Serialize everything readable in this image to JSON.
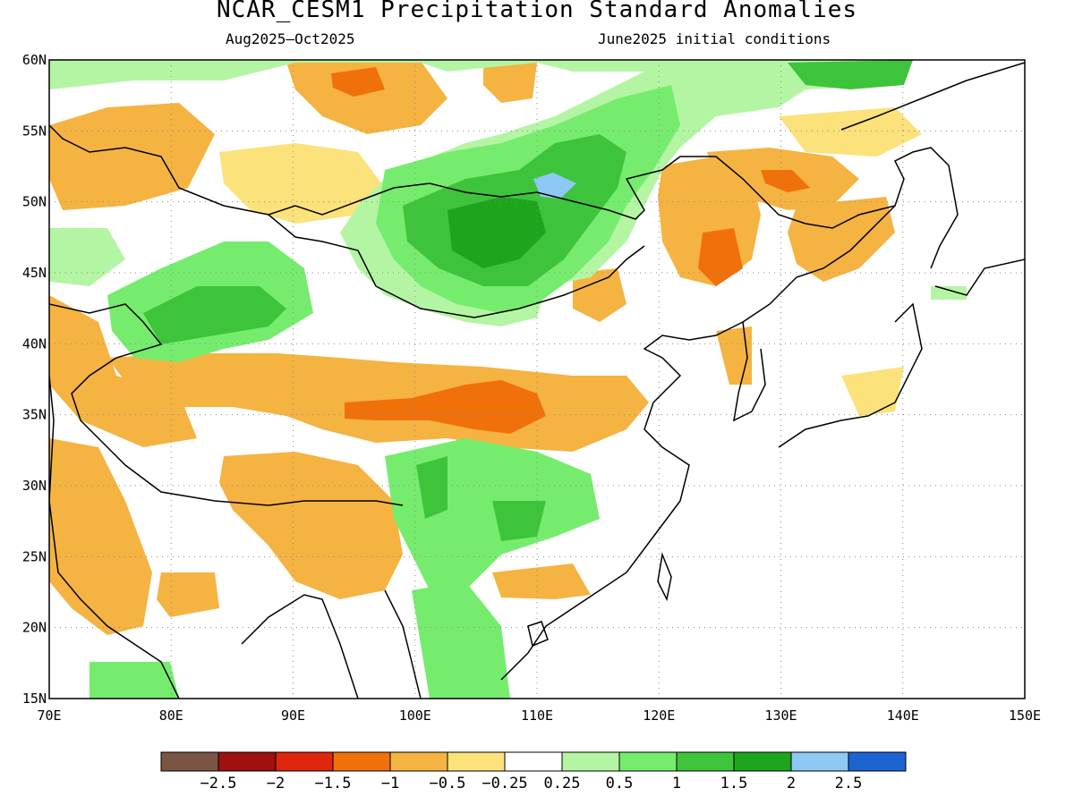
{
  "title": "NCAR_CESM1 Precipitation Standard Anomalies",
  "period": "Aug2025–Oct2025",
  "initial_conditions": "June2025 initial conditions",
  "lat_labels": [
    "60N",
    "55N",
    "50N",
    "45N",
    "40N",
    "35N",
    "30N",
    "25N",
    "20N",
    "15N"
  ],
  "lon_labels": [
    "70E",
    "80E",
    "90E",
    "100E",
    "110E",
    "120E",
    "130E",
    "140E",
    "150E"
  ],
  "colorbar": {
    "colors": [
      "#7b5544",
      "#a01010",
      "#e0250f",
      "#f0700a",
      "#f5b342",
      "#fbe27a",
      "#ffffff",
      "#b4f5a4",
      "#76ec6e",
      "#3ec43a",
      "#1ea51e",
      "#8ec8f4",
      "#1c64d2"
    ],
    "labels": [
      "−2.5",
      "−2",
      "−1.5",
      "−1",
      "−0.5",
      "−0.25",
      "0.25",
      "0.5",
      "1",
      "1.5",
      "2",
      "2.5"
    ]
  }
}
